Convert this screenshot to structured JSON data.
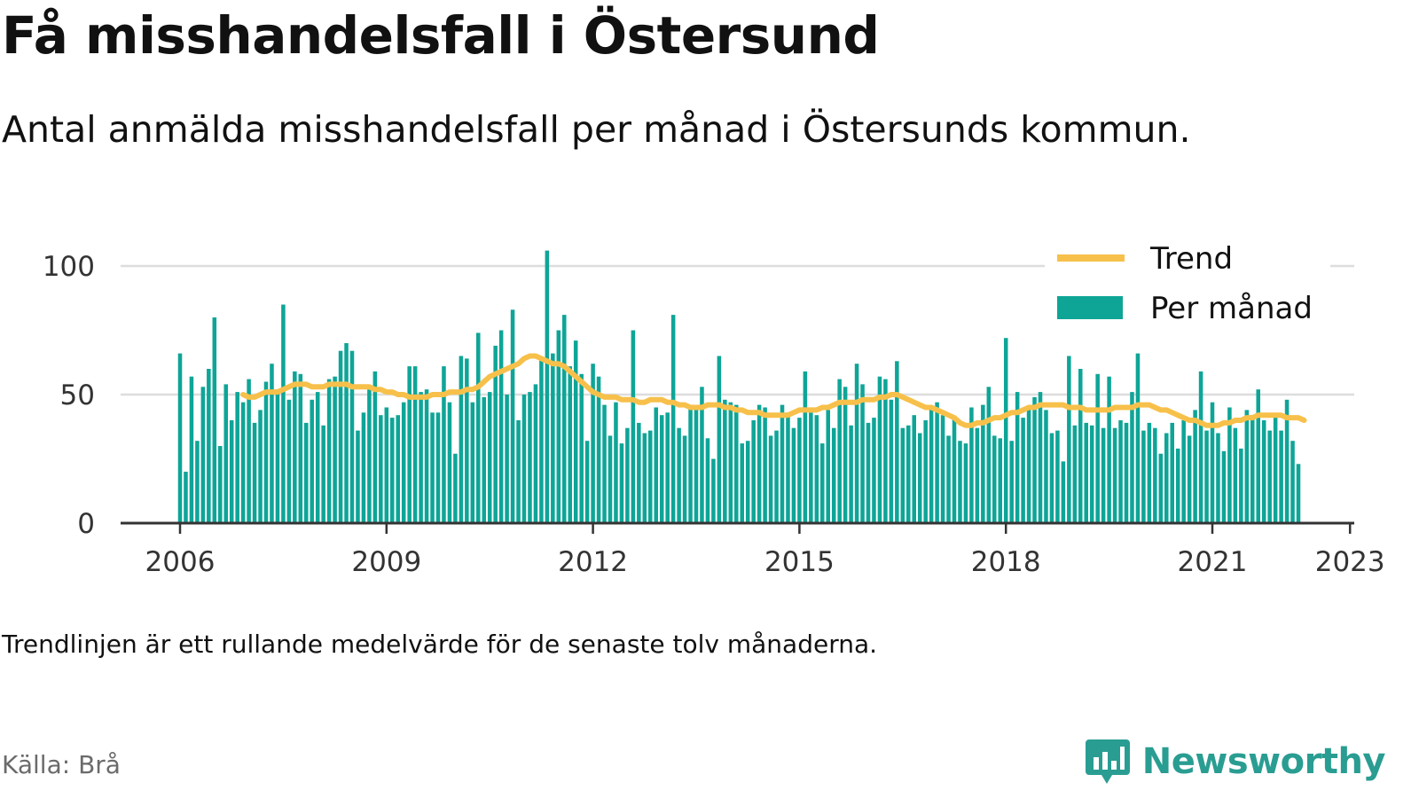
{
  "title": "Få misshandelsfall i Östersund",
  "subtitle": "Antal anmälda misshandelsfall per månad i Östersunds kommun.",
  "note": "Trendlinjen är ett rullande medelvärde för de senaste tolv månaderna.",
  "source": "Källa: Brå",
  "brand": {
    "name": "Newsworthy",
    "icon": "newsworthy-logo-icon",
    "color": "#2a9d92"
  },
  "colors": {
    "bars": "#0ea597",
    "trend": "#f7c04a",
    "grid": "#dddddd",
    "axis": "#333333"
  },
  "chart_data": {
    "type": "bar",
    "ylim": [
      0,
      106
    ],
    "yticks": [
      0,
      50,
      100
    ],
    "xticks": [
      "2006",
      "2009",
      "2012",
      "2015",
      "2018",
      "2021",
      "2023"
    ],
    "grid": true,
    "legend_placement": "top-right",
    "x_start": "2006-01",
    "x_end": "2023-02",
    "series": [
      {
        "name": "Per månad",
        "type": "bar",
        "values": [
          66,
          20,
          57,
          32,
          53,
          60,
          80,
          30,
          54,
          40,
          51,
          47,
          56,
          39,
          44,
          55,
          62,
          52,
          85,
          48,
          59,
          58,
          39,
          48,
          51,
          38,
          56,
          57,
          67,
          70,
          67,
          36,
          43,
          52,
          59,
          42,
          45,
          41,
          42,
          47,
          61,
          61,
          51,
          52,
          43,
          43,
          61,
          47,
          27,
          65,
          64,
          47,
          74,
          49,
          51,
          69,
          75,
          50,
          83,
          40,
          50,
          51,
          54,
          64,
          106,
          66,
          75,
          81,
          61,
          71,
          58,
          32,
          62,
          57,
          46,
          34,
          47,
          31,
          37,
          75,
          39,
          35,
          36,
          45,
          42,
          43,
          81,
          37,
          34,
          46,
          45,
          53,
          33,
          25,
          65,
          48,
          47,
          46,
          31,
          32,
          40,
          46,
          45,
          34,
          36,
          46,
          43,
          37,
          41,
          59,
          43,
          42,
          31,
          44,
          37,
          56,
          53,
          38,
          62,
          54,
          39,
          41,
          57,
          56,
          48,
          63,
          37,
          38,
          42,
          35,
          40,
          45,
          47,
          42,
          34,
          41,
          32,
          31,
          45,
          37,
          46,
          53,
          34,
          33,
          72,
          32,
          51,
          41,
          44,
          49,
          51,
          44,
          35,
          36,
          24,
          65,
          38,
          60,
          39,
          38,
          58,
          37,
          57,
          37,
          40,
          39,
          51,
          66,
          36,
          39,
          37,
          27,
          35,
          39,
          29,
          40,
          34,
          44,
          59,
          36,
          47,
          35,
          28,
          45,
          37,
          29,
          44,
          42,
          52,
          40,
          36,
          42,
          36,
          48,
          32,
          23
        ]
      },
      {
        "name": "Trend",
        "type": "line",
        "start_index": 11,
        "values": [
          50,
          49,
          49,
          50,
          51,
          51,
          51,
          52,
          53,
          54,
          54,
          54,
          53,
          53,
          53,
          54,
          54,
          54,
          54,
          53,
          53,
          53,
          53,
          52,
          52,
          51,
          51,
          50,
          50,
          49,
          49,
          49,
          49,
          50,
          50,
          50,
          51,
          51,
          51,
          52,
          52,
          53,
          55,
          57,
          58,
          59,
          60,
          61,
          62,
          64,
          65,
          65,
          64,
          63,
          62,
          62,
          61,
          59,
          57,
          55,
          53,
          51,
          50,
          49,
          49,
          49,
          48,
          48,
          48,
          47,
          47,
          48,
          48,
          48,
          47,
          47,
          46,
          46,
          45,
          45,
          45,
          46,
          46,
          46,
          45,
          45,
          44,
          44,
          43,
          43,
          43,
          42,
          42,
          42,
          42,
          42,
          43,
          44,
          44,
          44,
          44,
          45,
          45,
          46,
          47,
          47,
          47,
          47,
          48,
          48,
          48,
          49,
          49,
          50,
          50,
          49,
          48,
          47,
          46,
          45,
          45,
          44,
          43,
          42,
          41,
          39,
          38,
          38,
          39,
          39,
          40,
          41,
          41,
          42,
          43,
          43,
          44,
          45,
          45,
          46,
          46,
          46,
          46,
          46,
          45,
          45,
          45,
          44,
          44,
          44,
          44,
          44,
          45,
          45,
          45,
          45,
          46,
          46,
          46,
          45,
          44,
          44,
          43,
          42,
          41,
          40,
          40,
          39,
          38,
          38,
          38,
          39,
          39,
          40,
          40,
          41,
          41,
          42,
          42,
          42,
          42,
          42,
          41,
          41,
          41,
          40
        ]
      }
    ]
  }
}
